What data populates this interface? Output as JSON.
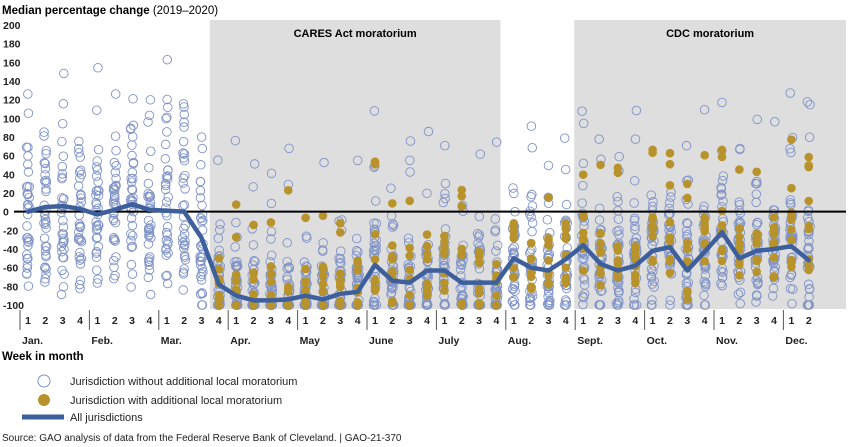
{
  "chart_data": {
    "type": "scatter",
    "title": "Median percentage change",
    "title_suffix": " (2019–2020)",
    "xlabel": "Week in month",
    "ylim": [
      -100,
      200
    ],
    "yticks": [
      200,
      180,
      160,
      140,
      120,
      100,
      80,
      60,
      40,
      20,
      0,
      -20,
      -40,
      -60,
      -80,
      -100
    ],
    "weeks": [
      {
        "month": "Jan.",
        "week": "1"
      },
      {
        "month": "Jan.",
        "week": "2"
      },
      {
        "month": "Jan.",
        "week": "3"
      },
      {
        "month": "Jan.",
        "week": "4"
      },
      {
        "month": "Feb.",
        "week": "1"
      },
      {
        "month": "Feb.",
        "week": "2"
      },
      {
        "month": "Feb.",
        "week": "3"
      },
      {
        "month": "Feb.",
        "week": "4"
      },
      {
        "month": "Mar.",
        "week": "1"
      },
      {
        "month": "Mar.",
        "week": "2"
      },
      {
        "month": "Mar.",
        "week": "3"
      },
      {
        "month": "Mar.",
        "week": "4"
      },
      {
        "month": "Apr.",
        "week": "1"
      },
      {
        "month": "Apr.",
        "week": "2"
      },
      {
        "month": "Apr.",
        "week": "3"
      },
      {
        "month": "Apr.",
        "week": "4"
      },
      {
        "month": "May",
        "week": "1"
      },
      {
        "month": "May",
        "week": "2"
      },
      {
        "month": "May",
        "week": "3"
      },
      {
        "month": "May",
        "week": "4"
      },
      {
        "month": "June",
        "week": "1"
      },
      {
        "month": "June",
        "week": "2"
      },
      {
        "month": "June",
        "week": "3"
      },
      {
        "month": "June",
        "week": "4"
      },
      {
        "month": "July",
        "week": "1"
      },
      {
        "month": "July",
        "week": "2"
      },
      {
        "month": "July",
        "week": "3"
      },
      {
        "month": "July",
        "week": "4"
      },
      {
        "month": "Aug.",
        "week": "1"
      },
      {
        "month": "Aug.",
        "week": "2"
      },
      {
        "month": "Aug.",
        "week": "3"
      },
      {
        "month": "Aug.",
        "week": "4"
      },
      {
        "month": "Sept.",
        "week": "1"
      },
      {
        "month": "Sept.",
        "week": "2"
      },
      {
        "month": "Sept.",
        "week": "3"
      },
      {
        "month": "Sept.",
        "week": "4"
      },
      {
        "month": "Oct.",
        "week": "1"
      },
      {
        "month": "Oct.",
        "week": "2"
      },
      {
        "month": "Oct.",
        "week": "3"
      },
      {
        "month": "Oct.",
        "week": "4"
      },
      {
        "month": "Nov.",
        "week": "1"
      },
      {
        "month": "Nov.",
        "week": "2"
      },
      {
        "month": "Nov.",
        "week": "3"
      },
      {
        "month": "Nov.",
        "week": "4"
      },
      {
        "month": "Dec.",
        "week": "1"
      },
      {
        "month": "Dec.",
        "week": "2"
      }
    ],
    "months": [
      "Jan.",
      "Feb.",
      "Mar.",
      "Apr.",
      "May",
      "June",
      "July",
      "Aug.",
      "Sept.",
      "Oct.",
      "Nov.",
      "Dec."
    ],
    "shaded_periods": [
      {
        "label": "CARES Act moratorium",
        "from": "Mar. 4",
        "to": "July 4"
      },
      {
        "label": "CDC moratorium",
        "from": "Sept. 1",
        "to": "Dec. 2"
      }
    ],
    "series": [
      {
        "name": "All jurisdictions",
        "values": [
          0,
          5,
          6,
          3,
          -3,
          2,
          8,
          2,
          1,
          0,
          -28,
          -78,
          -90,
          -95,
          -95,
          -94,
          -90,
          -94,
          -88,
          -86,
          -57,
          -74,
          -76,
          -63,
          -63,
          -76,
          -76,
          -76,
          -50,
          -60,
          -63,
          -51,
          -36,
          -56,
          -63,
          -58,
          -42,
          -38,
          -63,
          -43,
          -22,
          -50,
          -42,
          -40,
          -37,
          -52
        ]
      }
    ],
    "scatter_legend": [
      {
        "name": "Jurisdiction without additional local moratorium",
        "marker": "open-circle"
      },
      {
        "name": "Jurisdiction with additional local moratorium",
        "marker": "filled-circle"
      }
    ],
    "colors": {
      "line": "#3d5f9c",
      "open_circle": "#7f93c7",
      "filled_circle": "#b8932b",
      "shade": "#dedede",
      "zero_line": "#000000"
    }
  },
  "source": "Source: GAO analysis of data from the Federal Reserve Bank of Cleveland.  |  GAO-21-370"
}
